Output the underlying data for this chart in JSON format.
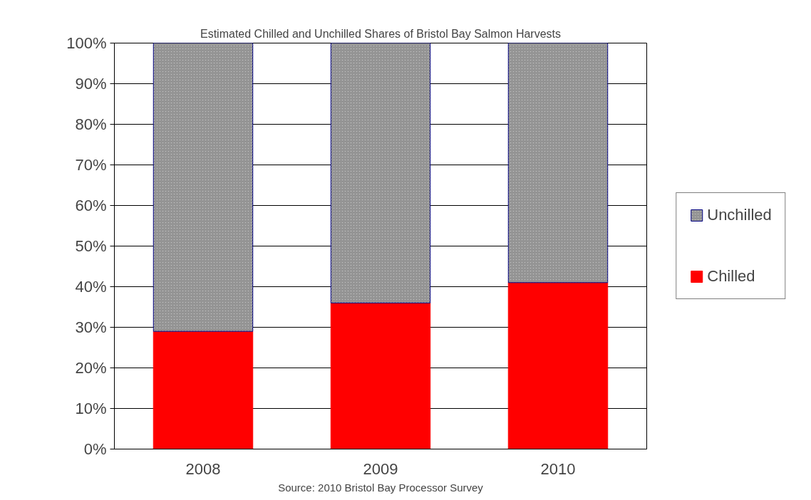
{
  "chart_data": {
    "type": "bar",
    "stacked": true,
    "title": "Estimated Chilled and Unchilled Shares of Bristol Bay Salmon Harvests",
    "categories": [
      "2008",
      "2009",
      "2010"
    ],
    "series": [
      {
        "name": "Chilled",
        "color": "#ff0000",
        "values": [
          29,
          36,
          41
        ]
      },
      {
        "name": "Unchilled",
        "color": "#c8c8c8",
        "values": [
          71,
          64,
          59
        ]
      }
    ],
    "ylim": [
      0,
      100
    ],
    "yticks": [
      {
        "value": 0,
        "label": "0%"
      },
      {
        "value": 10,
        "label": "10%"
      },
      {
        "value": 20,
        "label": "20%"
      },
      {
        "value": 30,
        "label": "30%"
      },
      {
        "value": 40,
        "label": "40%"
      },
      {
        "value": 50,
        "label": "50%"
      },
      {
        "value": 60,
        "label": "60%"
      },
      {
        "value": 70,
        "label": "70%"
      },
      {
        "value": 80,
        "label": "80%"
      },
      {
        "value": 90,
        "label": "90%"
      },
      {
        "value": 100,
        "label": "100%"
      }
    ],
    "grid": "y",
    "legend": "right",
    "annotations": [
      "Source: 2010 Bristol Bay Processor Survey"
    ]
  }
}
